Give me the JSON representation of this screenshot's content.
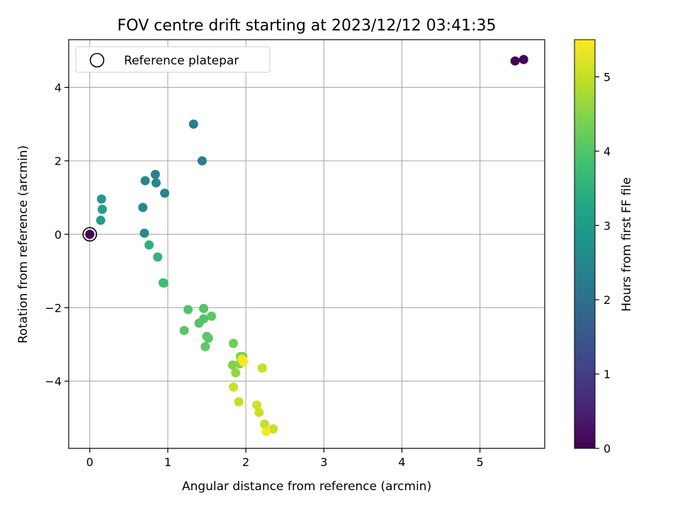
{
  "chart_data": {
    "type": "scatter",
    "title": "FOV centre drift starting at 2023/12/12 03:41:35",
    "xlabel": "Angular distance from reference (arcmin)",
    "ylabel": "Rotation from reference (arcmin)",
    "xlim": [
      -0.27,
      5.83
    ],
    "ylim": [
      -5.83,
      5.3
    ],
    "xticks": [
      0,
      1,
      2,
      3,
      4,
      5
    ],
    "yticks": [
      -4,
      -2,
      0,
      2,
      4
    ],
    "ytick_labels": [
      "−4",
      "−2",
      "0",
      "2",
      "4"
    ],
    "grid": true,
    "legend": {
      "placement": "upper-left",
      "entries": [
        "Reference platepar"
      ]
    },
    "reference_point": {
      "x": 0,
      "y": 0
    },
    "colorbar": {
      "label": "Hours from first FF file",
      "colormap": "viridis",
      "range": [
        0,
        5.5
      ],
      "ticks": [
        0,
        1,
        2,
        3,
        4,
        5
      ]
    },
    "points": [
      {
        "x": 5.45,
        "y": 4.72,
        "c": 0.0
      },
      {
        "x": 5.56,
        "y": 4.76,
        "c": 0.05
      },
      {
        "x": 0.0,
        "y": 0.0,
        "c": 0.05
      },
      {
        "x": 1.33,
        "y": 3.0,
        "c": 2.3
      },
      {
        "x": 1.44,
        "y": 2.0,
        "c": 2.35
      },
      {
        "x": 0.84,
        "y": 1.63,
        "c": 2.45
      },
      {
        "x": 0.85,
        "y": 1.4,
        "c": 2.5
      },
      {
        "x": 0.71,
        "y": 1.46,
        "c": 2.5
      },
      {
        "x": 0.96,
        "y": 1.12,
        "c": 2.5
      },
      {
        "x": 0.68,
        "y": 0.73,
        "c": 2.55
      },
      {
        "x": 0.7,
        "y": 0.03,
        "c": 2.6
      },
      {
        "x": 0.15,
        "y": 0.96,
        "c": 3.0
      },
      {
        "x": 0.16,
        "y": 0.68,
        "c": 3.1
      },
      {
        "x": 0.14,
        "y": 0.38,
        "c": 3.05
      },
      {
        "x": 0.76,
        "y": -0.29,
        "c": 3.5
      },
      {
        "x": 0.87,
        "y": -0.62,
        "c": 3.6
      },
      {
        "x": 0.94,
        "y": -1.32,
        "c": 3.7
      },
      {
        "x": 0.95,
        "y": -1.33,
        "c": 3.8
      },
      {
        "x": 1.26,
        "y": -2.05,
        "c": 4.0
      },
      {
        "x": 1.46,
        "y": -2.02,
        "c": 4.0
      },
      {
        "x": 1.56,
        "y": -2.23,
        "c": 4.1
      },
      {
        "x": 1.46,
        "y": -2.3,
        "c": 4.0
      },
      {
        "x": 1.4,
        "y": -2.42,
        "c": 4.0
      },
      {
        "x": 1.21,
        "y": -2.62,
        "c": 4.05
      },
      {
        "x": 1.5,
        "y": -2.78,
        "c": 4.05
      },
      {
        "x": 1.52,
        "y": -2.83,
        "c": 4.1
      },
      {
        "x": 1.48,
        "y": -3.06,
        "c": 4.1
      },
      {
        "x": 1.84,
        "y": -2.97,
        "c": 4.3
      },
      {
        "x": 1.93,
        "y": -3.33,
        "c": 4.4
      },
      {
        "x": 1.96,
        "y": -3.33,
        "c": 4.35
      },
      {
        "x": 1.83,
        "y": -3.56,
        "c": 4.45
      },
      {
        "x": 1.92,
        "y": -3.53,
        "c": 4.5
      },
      {
        "x": 1.87,
        "y": -3.77,
        "c": 4.6
      },
      {
        "x": 2.21,
        "y": -3.64,
        "c": 5.0
      },
      {
        "x": 1.84,
        "y": -4.16,
        "c": 5.05
      },
      {
        "x": 1.91,
        "y": -4.56,
        "c": 5.0
      },
      {
        "x": 2.14,
        "y": -4.65,
        "c": 5.1
      },
      {
        "x": 2.17,
        "y": -4.85,
        "c": 5.05
      },
      {
        "x": 2.24,
        "y": -5.17,
        "c": 5.0
      },
      {
        "x": 2.35,
        "y": -5.3,
        "c": 5.05
      },
      {
        "x": 2.26,
        "y": -5.37,
        "c": 5.45
      },
      {
        "x": 1.95,
        "y": -3.4,
        "c": 5.4
      },
      {
        "x": 1.97,
        "y": -3.47,
        "c": 5.5
      }
    ]
  }
}
